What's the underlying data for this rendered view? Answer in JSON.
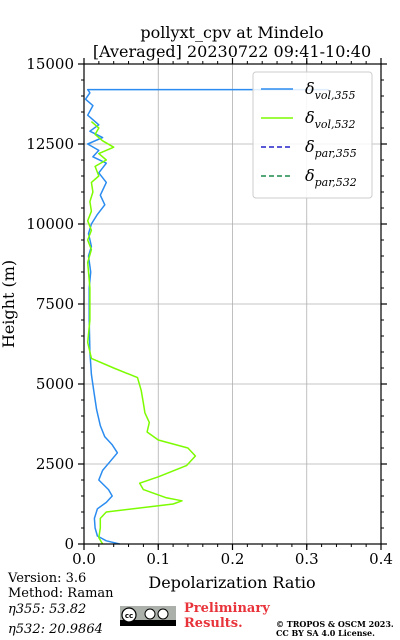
{
  "chart_data": {
    "type": "line",
    "title": "pollyxt_cpv at Mindelo",
    "subtitle": "[Averaged] 20230722 09:41-10:40",
    "xlabel": "Depolarization Ratio",
    "ylabel": "Height (m)",
    "xlim": [
      0,
      0.4
    ],
    "ylim": [
      0,
      15000
    ],
    "x_ticks": [
      "0.0",
      "0.1",
      "0.2",
      "0.3",
      "0.4"
    ],
    "y_ticks": [
      "0",
      "2500",
      "5000",
      "7500",
      "10000",
      "12500",
      "15000"
    ],
    "grid": true,
    "legend_position": "top-right",
    "series": [
      {
        "name": "δvol,355",
        "legend_base": "δ",
        "legend_sub": "vol,355",
        "color": "#2b8cf0",
        "style": "solid",
        "points": [
          [
            0.048,
            0
          ],
          [
            0.03,
            100
          ],
          [
            0.018,
            250
          ],
          [
            0.015,
            500
          ],
          [
            0.014,
            800
          ],
          [
            0.018,
            1100
          ],
          [
            0.03,
            1300
          ],
          [
            0.038,
            1500
          ],
          [
            0.033,
            1700
          ],
          [
            0.02,
            2000
          ],
          [
            0.025,
            2300
          ],
          [
            0.036,
            2600
          ],
          [
            0.045,
            2850
          ],
          [
            0.038,
            3100
          ],
          [
            0.028,
            3350
          ],
          [
            0.022,
            3700
          ],
          [
            0.017,
            4200
          ],
          [
            0.013,
            4800
          ],
          [
            0.01,
            5300
          ],
          [
            0.008,
            6000
          ],
          [
            0.007,
            7000
          ],
          [
            0.007,
            8000
          ],
          [
            0.009,
            8500
          ],
          [
            0.006,
            9000
          ],
          [
            0.01,
            9300
          ],
          [
            0.006,
            9700
          ],
          [
            0.01,
            10000
          ],
          [
            0.018,
            10300
          ],
          [
            0.028,
            10600
          ],
          [
            0.022,
            10900
          ],
          [
            0.03,
            11300
          ],
          [
            0.02,
            11600
          ],
          [
            0.03,
            11900
          ],
          [
            0.012,
            12100
          ],
          [
            0.02,
            12300
          ],
          [
            0.005,
            12500
          ],
          [
            0.025,
            12700
          ],
          [
            0.008,
            12900
          ],
          [
            0.02,
            13100
          ],
          [
            0.005,
            13400
          ],
          [
            0.012,
            13700
          ],
          [
            0.002,
            13900
          ],
          [
            0.008,
            14100
          ],
          [
            0.005,
            14200
          ],
          [
            0.33,
            14200
          ]
        ]
      },
      {
        "name": "δvol,532",
        "legend_base": "δ",
        "legend_sub": "vol,532",
        "color": "#7cfc00",
        "style": "solid",
        "points": [
          [
            0.025,
            0
          ],
          [
            0.02,
            200
          ],
          [
            0.022,
            500
          ],
          [
            0.022,
            800
          ],
          [
            0.03,
            1000
          ],
          [
            0.12,
            1250
          ],
          [
            0.132,
            1350
          ],
          [
            0.11,
            1450
          ],
          [
            0.08,
            1700
          ],
          [
            0.075,
            1900
          ],
          [
            0.1,
            2100
          ],
          [
            0.138,
            2450
          ],
          [
            0.15,
            2750
          ],
          [
            0.14,
            3000
          ],
          [
            0.1,
            3250
          ],
          [
            0.085,
            3500
          ],
          [
            0.088,
            3800
          ],
          [
            0.082,
            4100
          ],
          [
            0.08,
            4400
          ],
          [
            0.077,
            4800
          ],
          [
            0.072,
            5200
          ],
          [
            0.04,
            5500
          ],
          [
            0.01,
            5800
          ],
          [
            0.005,
            6300
          ],
          [
            0.008,
            7000
          ],
          [
            0.008,
            8000
          ],
          [
            0.005,
            8800
          ],
          [
            0.01,
            9200
          ],
          [
            0.005,
            9500
          ],
          [
            0.01,
            9800
          ],
          [
            0.005,
            10100
          ],
          [
            0.01,
            10400
          ],
          [
            0.008,
            10700
          ],
          [
            0.012,
            11000
          ],
          [
            0.01,
            11300
          ],
          [
            0.02,
            11500
          ],
          [
            0.015,
            11800
          ],
          [
            0.03,
            12000
          ],
          [
            0.02,
            12200
          ],
          [
            0.04,
            12400
          ],
          [
            0.025,
            12600
          ],
          [
            0.015,
            12800
          ],
          [
            0.02,
            13000
          ],
          [
            0.01,
            13200
          ]
        ]
      },
      {
        "name": "δpar,355",
        "legend_base": "δ",
        "legend_sub": "par,355",
        "color": "#2222cc",
        "style": "dashed",
        "points": []
      },
      {
        "name": "δpar,532",
        "legend_base": "δ",
        "legend_sub": "par,532",
        "color": "#1f8a4c",
        "style": "dashed",
        "points": []
      }
    ]
  },
  "footer": {
    "version": "Version: 3.6",
    "method": "Method: Raman",
    "eta355": "η355:  53.82",
    "eta532": "η532: 20.9864",
    "preliminary_line1": "Preliminary",
    "preliminary_line2": "Results.",
    "copyright_line1": "© TROPOS & OSCM 2023.",
    "copyright_line2": "CC BY SA 4.0 License.",
    "license_badge": "cc-by-sa-logo"
  }
}
